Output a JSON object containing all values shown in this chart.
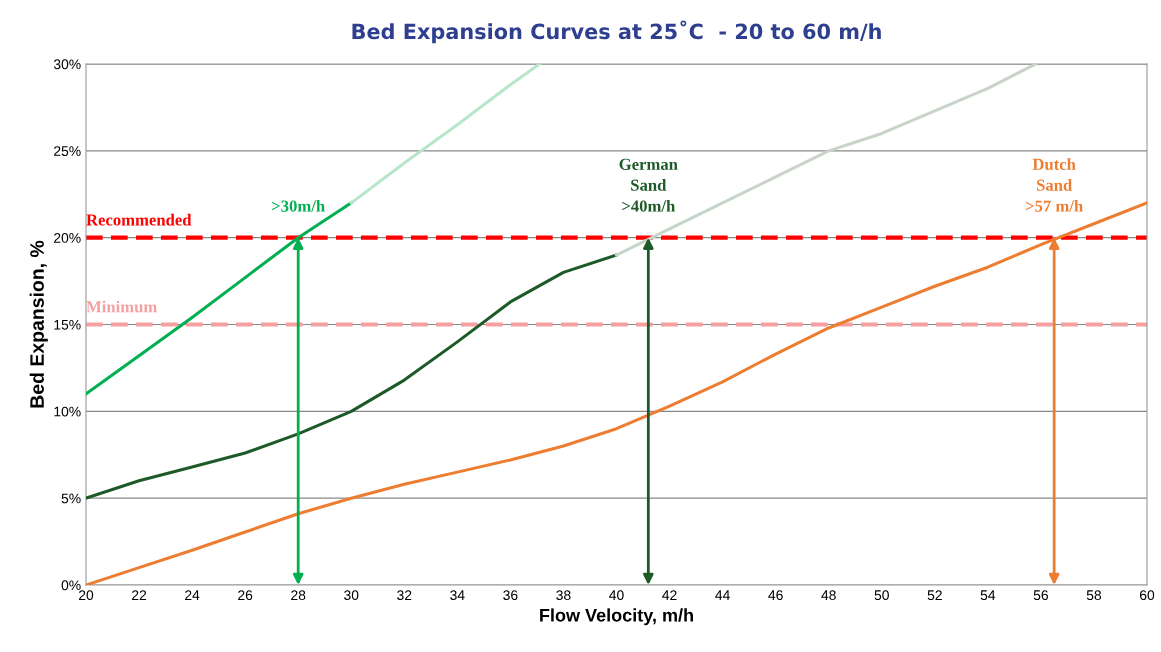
{
  "chart_data": {
    "type": "line",
    "title": "Bed Expansion Curves at 25˚C  - 20 to 60 m/h",
    "xlabel": "Flow Velocity, m/h",
    "ylabel": "Bed Expansion, %",
    "series": [
      {
        "color": "#00b050",
        "x": [
          20,
          22,
          24,
          26,
          28,
          30
        ],
        "values": [
          11,
          13.2,
          15.4,
          17.7,
          20,
          22
        ]
      },
      {
        "color": "#b8e6cb",
        "x": [
          30,
          32,
          34,
          36,
          37.1
        ],
        "values": [
          22,
          24.3,
          26.5,
          28.8,
          30
        ]
      },
      {
        "color": "#1e5a28",
        "x": [
          20,
          22,
          24,
          26,
          28,
          30,
          32,
          34,
          36,
          38,
          40
        ],
        "values": [
          5,
          6,
          6.8,
          7.6,
          8.7,
          10,
          11.8,
          14,
          16.3,
          18,
          19
        ]
      },
      {
        "color": "#c8d4c8",
        "x": [
          40,
          42,
          44,
          46,
          48,
          50,
          52,
          54,
          55.8
        ],
        "values": [
          19,
          20.5,
          22,
          23.5,
          25,
          26,
          27.3,
          28.6,
          30
        ]
      },
      {
        "color": "#ed7d31",
        "x": [
          20,
          22,
          24,
          26,
          28,
          30,
          32,
          34,
          36,
          38,
          40,
          42,
          44,
          46,
          48,
          50,
          52,
          54,
          56,
          58,
          60
        ],
        "values": [
          0,
          1,
          2,
          3.05,
          4.1,
          5,
          5.8,
          6.5,
          7.2,
          8,
          9,
          10.3,
          11.7,
          13.3,
          14.8,
          16,
          17.2,
          18.3,
          19.6,
          20.8,
          22
        ]
      }
    ],
    "xlim": [
      20,
      60
    ],
    "xticks": [
      20,
      22,
      24,
      26,
      28,
      30,
      32,
      34,
      36,
      38,
      40,
      42,
      44,
      46,
      48,
      50,
      52,
      54,
      56,
      58,
      60
    ],
    "ylim": [
      0,
      30
    ],
    "yticks": [
      {
        "value": 0,
        "label": "0%"
      },
      {
        "value": 5,
        "label": "5%"
      },
      {
        "value": 10,
        "label": "10%"
      },
      {
        "value": 15,
        "label": "15%"
      },
      {
        "value": 20,
        "label": "20%"
      },
      {
        "value": 25,
        "label": "25%"
      },
      {
        "value": 30,
        "label": "30%"
      }
    ],
    "grid": "y",
    "legend": false,
    "marker": "none",
    "line_style": "solid",
    "ref_lines": [
      {
        "axis": "y",
        "value": 20,
        "label": "Recommended",
        "color": "#ff0000",
        "line_style": "dashed"
      },
      {
        "axis": "y",
        "value": 15,
        "label": "Minimum",
        "color": "#f4a0a0",
        "line_style": "dashed"
      }
    ],
    "annotations": [
      {
        "text": ">30m/h",
        "x": 28,
        "y": 20
      },
      {
        "text": "German\nSand\n>40m/h",
        "x": 41.2,
        "y": 20
      },
      {
        "text": "Dutch\nSand\n>57 m/h",
        "x": 56.5,
        "y": 20
      }
    ]
  }
}
